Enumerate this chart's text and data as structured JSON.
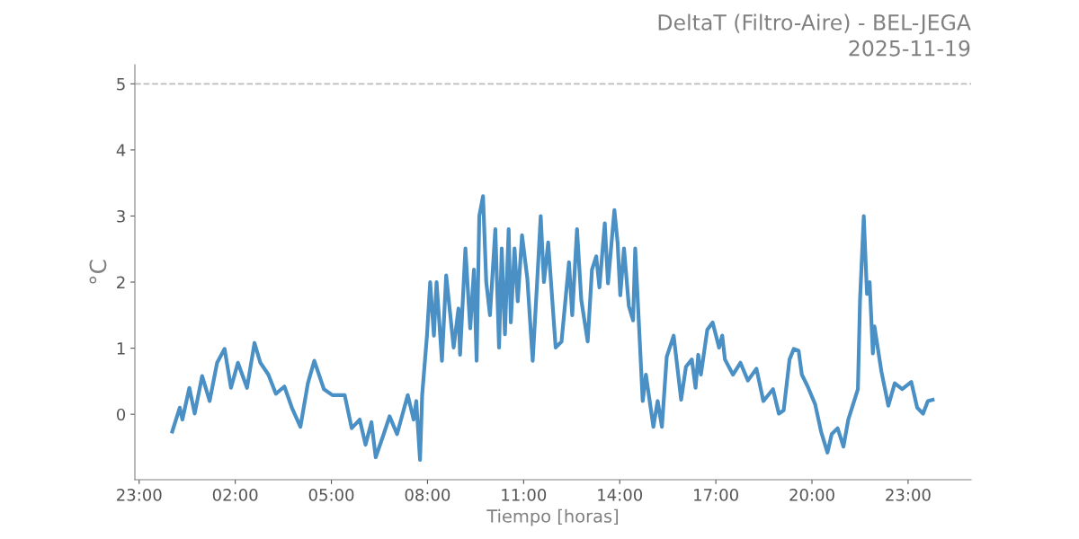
{
  "chart_data": {
    "type": "line",
    "title": "DeltaT (Filtro-Aire) - BEL-JEGA",
    "subtitle": "2025-11-19",
    "xlabel": "Tiempo [horas]",
    "ylabel": "°C",
    "x": [
      "2025-11-19T00:02",
      "2025-11-19T00:16",
      "2025-11-19T00:21",
      "2025-11-19T00:34",
      "2025-11-19T00:44",
      "2025-11-19T00:58",
      "2025-11-19T01:12",
      "2025-11-19T01:26",
      "2025-11-19T01:40",
      "2025-11-19T01:52",
      "2025-11-19T02:05",
      "2025-11-19T02:22",
      "2025-11-19T02:36",
      "2025-11-19T02:47",
      "2025-11-19T03:02",
      "2025-11-19T03:16",
      "2025-11-19T03:32",
      "2025-11-19T03:46",
      "2025-11-19T04:02",
      "2025-11-19T04:16",
      "2025-11-19T04:28",
      "2025-11-19T04:46",
      "2025-11-19T05:02",
      "2025-11-19T05:25",
      "2025-11-19T05:38",
      "2025-11-19T05:53",
      "2025-11-19T06:04",
      "2025-11-19T06:15",
      "2025-11-19T06:23",
      "2025-11-19T06:38",
      "2025-11-19T06:49",
      "2025-11-19T07:03",
      "2025-11-19T07:23",
      "2025-11-19T07:34",
      "2025-11-19T07:39",
      "2025-11-19T07:46",
      "2025-11-19T07:50",
      "2025-11-19T07:59",
      "2025-11-19T08:05",
      "2025-11-19T08:12",
      "2025-11-19T08:17",
      "2025-11-19T08:27",
      "2025-11-19T08:35",
      "2025-11-19T08:49",
      "2025-11-19T08:58",
      "2025-11-19T09:01",
      "2025-11-19T09:11",
      "2025-11-19T09:20",
      "2025-11-19T09:27",
      "2025-11-19T09:32",
      "2025-11-19T09:37",
      "2025-11-19T09:44",
      "2025-11-19T09:50",
      "2025-11-19T09:57",
      "2025-11-19T10:07",
      "2025-11-19T10:14",
      "2025-11-19T10:19",
      "2025-11-19T10:25",
      "2025-11-19T10:32",
      "2025-11-19T10:36",
      "2025-11-19T10:43",
      "2025-11-19T10:49",
      "2025-11-19T10:57",
      "2025-11-19T11:07",
      "2025-11-19T11:17",
      "2025-11-19T11:26",
      "2025-11-19T11:32",
      "2025-11-19T11:38",
      "2025-11-19T11:46",
      "2025-11-19T12:00",
      "2025-11-19T12:11",
      "2025-11-19T12:25",
      "2025-11-19T12:31",
      "2025-11-19T12:40",
      "2025-11-19T12:48",
      "2025-11-19T13:00",
      "2025-11-19T13:08",
      "2025-11-19T13:16",
      "2025-11-19T13:22",
      "2025-11-19T13:32",
      "2025-11-19T13:38",
      "2025-11-19T13:50",
      "2025-11-19T13:56",
      "2025-11-19T14:01",
      "2025-11-19T14:08",
      "2025-11-19T14:17",
      "2025-11-19T14:25",
      "2025-11-19T14:29",
      "2025-11-19T14:43",
      "2025-11-19T14:49",
      "2025-11-19T15:03",
      "2025-11-19T15:11",
      "2025-11-19T15:19",
      "2025-11-19T15:28",
      "2025-11-19T15:41",
      "2025-11-19T15:55",
      "2025-11-19T16:04",
      "2025-11-19T16:15",
      "2025-11-19T16:22",
      "2025-11-19T16:27",
      "2025-11-19T16:32",
      "2025-11-19T16:44",
      "2025-11-19T16:54",
      "2025-11-19T17:06",
      "2025-11-19T17:12",
      "2025-11-19T17:17",
      "2025-11-19T17:32",
      "2025-11-19T17:46",
      "2025-11-19T18:00",
      "2025-11-19T18:16",
      "2025-11-19T18:29",
      "2025-11-19T18:47",
      "2025-11-19T18:58",
      "2025-11-19T19:07",
      "2025-11-19T19:18",
      "2025-11-19T19:26",
      "2025-11-19T19:35",
      "2025-11-19T19:41",
      "2025-11-19T19:52",
      "2025-11-19T20:06",
      "2025-11-19T20:17",
      "2025-11-19T20:29",
      "2025-11-19T20:37",
      "2025-11-19T20:48",
      "2025-11-19T20:59",
      "2025-11-19T21:08",
      "2025-11-19T21:19",
      "2025-11-19T21:26",
      "2025-11-19T21:30",
      "2025-11-19T21:37",
      "2025-11-19T21:43",
      "2025-11-19T21:48",
      "2025-11-19T21:54",
      "2025-11-19T21:57",
      "2025-11-19T22:10",
      "2025-11-19T22:23",
      "2025-11-19T22:35",
      "2025-11-19T22:49",
      "2025-11-19T23:06",
      "2025-11-19T23:17",
      "2025-11-19T23:28",
      "2025-11-19T23:37",
      "2025-11-19T23:46"
    ],
    "series": [
      {
        "color": "#4a90c4",
        "values": [
          -0.26,
          0.1,
          -0.08,
          0.4,
          0.01,
          0.58,
          0.2,
          0.78,
          0.99,
          0.4,
          0.78,
          0.4,
          1.08,
          0.78,
          0.6,
          0.31,
          0.42,
          0.1,
          -0.19,
          0.47,
          0.81,
          0.38,
          0.29,
          0.29,
          -0.21,
          -0.08,
          -0.46,
          -0.12,
          -0.65,
          -0.3,
          -0.03,
          -0.3,
          0.29,
          -0.08,
          0.2,
          -0.69,
          0.29,
          1.19,
          2.0,
          1.19,
          2.0,
          0.81,
          2.1,
          1.01,
          1.6,
          0.9,
          2.51,
          1.3,
          2.19,
          0.81,
          3.0,
          3.3,
          2.0,
          1.5,
          2.8,
          1.01,
          2.51,
          1.21,
          2.8,
          1.39,
          2.51,
          1.71,
          2.71,
          2.05,
          0.81,
          2.1,
          3.0,
          2.0,
          2.6,
          1.01,
          1.1,
          2.3,
          1.5,
          2.8,
          1.73,
          1.1,
          2.19,
          2.39,
          1.92,
          2.89,
          1.98,
          3.09,
          2.6,
          1.8,
          2.51,
          1.64,
          1.42,
          2.51,
          0.2,
          0.6,
          -0.19,
          0.2,
          -0.19,
          0.87,
          1.19,
          0.22,
          0.72,
          0.83,
          0.4,
          0.9,
          0.6,
          1.28,
          1.39,
          1.01,
          1.19,
          0.83,
          0.6,
          0.78,
          0.51,
          0.69,
          0.2,
          0.38,
          0.01,
          0.06,
          0.83,
          0.99,
          0.96,
          0.6,
          0.42,
          0.15,
          -0.26,
          -0.58,
          -0.3,
          -0.21,
          -0.49,
          -0.08,
          0.2,
          0.38,
          1.73,
          3.0,
          1.82,
          2.0,
          0.92,
          1.33,
          0.65,
          0.13,
          0.47,
          0.38,
          0.49,
          0.1,
          0.01,
          0.2,
          0.22
        ]
      }
    ],
    "xlim": [
      "2025-11-18T22:52",
      "2025-11-20T00:58"
    ],
    "ylim": [
      -0.99,
      5.29
    ],
    "xticks": [
      {
        "value": "2025-11-18T23:00",
        "label": "23:00"
      },
      {
        "value": "2025-11-19T02:00",
        "label": "02:00"
      },
      {
        "value": "2025-11-19T05:00",
        "label": "05:00"
      },
      {
        "value": "2025-11-19T08:00",
        "label": "08:00"
      },
      {
        "value": "2025-11-19T11:00",
        "label": "11:00"
      },
      {
        "value": "2025-11-19T14:00",
        "label": "14:00"
      },
      {
        "value": "2025-11-19T17:00",
        "label": "17:00"
      },
      {
        "value": "2025-11-19T20:00",
        "label": "20:00"
      },
      {
        "value": "2025-11-19T23:00",
        "label": "23:00"
      }
    ],
    "yticks": [
      0,
      1,
      2,
      3,
      4,
      5
    ],
    "ref_lines": [
      {
        "axis": "y",
        "value": 5,
        "color": "#bbbbbb",
        "line_style": "dashed"
      }
    ],
    "grid": false,
    "legend": false,
    "marker": "none",
    "line_style": "solid"
  }
}
